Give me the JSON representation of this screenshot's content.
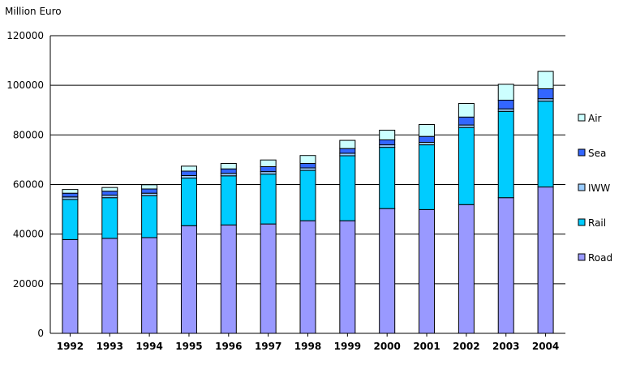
{
  "chart_data": {
    "type": "bar",
    "stacked": true,
    "title": "",
    "unit_label": "Million Euro",
    "xlabel": "",
    "ylabel": "",
    "ylim": [
      0,
      120000
    ],
    "yticks": [
      0,
      20000,
      40000,
      60000,
      80000,
      100000,
      120000
    ],
    "grid": true,
    "legend_position": "right",
    "categories": [
      "1992",
      "1993",
      "1994",
      "1995",
      "1996",
      "1997",
      "1998",
      "1999",
      "2000",
      "2001",
      "2002",
      "2003",
      "2004"
    ],
    "series": [
      {
        "name": "Road",
        "color": "#9999ff",
        "values": [
          37800,
          38300,
          38600,
          43400,
          43700,
          44100,
          45400,
          45400,
          50300,
          49900,
          51900,
          54700,
          59000
        ]
      },
      {
        "name": "Rail",
        "color": "#00ccff",
        "values": [
          16200,
          16400,
          16900,
          19200,
          19800,
          20100,
          20300,
          26200,
          24700,
          26100,
          31100,
          34800,
          34600
        ]
      },
      {
        "name": "IWW",
        "color": "#99ccff",
        "values": [
          1000,
          1000,
          1000,
          1000,
          1000,
          1000,
          1000,
          1000,
          1000,
          1000,
          1000,
          1000,
          1000
        ]
      },
      {
        "name": "Sea",
        "color": "#3366ff",
        "values": [
          1500,
          1600,
          1700,
          1800,
          1800,
          2000,
          1800,
          1900,
          2000,
          2400,
          3200,
          3500,
          4000
        ]
      },
      {
        "name": "Air",
        "color": "#ccffff",
        "values": [
          1500,
          1500,
          1700,
          2000,
          2200,
          2700,
          3200,
          3300,
          3900,
          4800,
          5500,
          6400,
          7000
        ]
      }
    ]
  }
}
